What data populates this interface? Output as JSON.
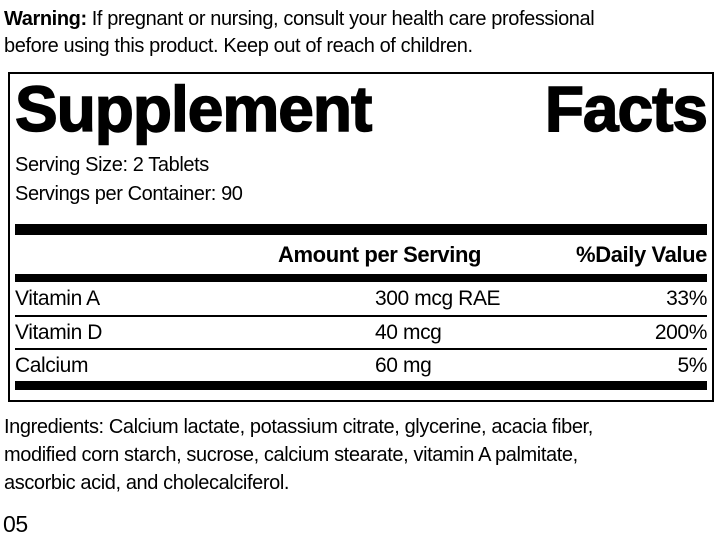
{
  "colors": {
    "ink": "#000000",
    "paper": "#ffffff"
  },
  "warning": {
    "label": "Warning:",
    "line1": "If pregnant or nursing, consult your health care professional",
    "line2": "before using this product. Keep out of reach of children."
  },
  "panel": {
    "title_word1": "Supplement",
    "title_word2": "Facts",
    "serving_size": "Serving Size: 2 Tablets",
    "servings_per_container": "Servings per Container: 90",
    "columns": {
      "amount": "Amount per Serving",
      "daily_value": "%Daily Value"
    },
    "rows": [
      {
        "name": "Vitamin A",
        "amount": "300 mcg RAE",
        "dv": "33%"
      },
      {
        "name": "Vitamin D",
        "amount": "40 mcg",
        "dv": "200%"
      },
      {
        "name": "Calcium",
        "amount": "60 mg",
        "dv": "5%"
      }
    ]
  },
  "ingredients": {
    "line1": "Ingredients: Calcium lactate, potassium citrate, glycerine, acacia fiber,",
    "line2": "modified corn starch, sucrose, calcium stearate, vitamin A palmitate,",
    "line3": "ascorbic acid, and cholecalciferol."
  },
  "footer": {
    "code": "05"
  }
}
